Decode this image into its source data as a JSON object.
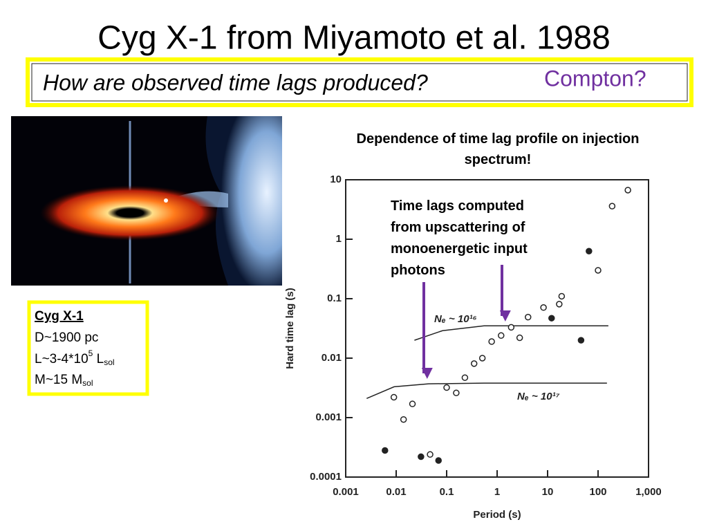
{
  "title": "Cyg X-1 from Miyamoto et al. 1988",
  "subtitle": {
    "question": "How are observed time lags produced?",
    "answer": "Compton?"
  },
  "info": {
    "heading": "Cyg X-1",
    "lines": [
      [
        "D~1900 pc"
      ],
      [
        "L~3-4*10",
        "5",
        " L",
        "sol"
      ],
      [
        "M~15 M",
        "sol"
      ]
    ]
  },
  "chart_data": {
    "type": "scatter",
    "title": "Dependence of time lag profile on injection spectrum!",
    "annotation": "Time lags computed from upscattering of monoenergetic input photons",
    "x_label": "Period (s)",
    "y_label": "Hard time lag (s)",
    "xscale": "log",
    "yscale": "log",
    "xlim": [
      0.001,
      1000
    ],
    "ylim": [
      0.0001,
      10
    ],
    "xticks": [
      0.001,
      0.01,
      0.1,
      1,
      10,
      100,
      {
        "value": 1000,
        "label": "1,000"
      }
    ],
    "yticks": [
      0.0001,
      0.001,
      0.01,
      0.1,
      1,
      10
    ],
    "color": "#222222",
    "series": [
      {
        "marker": "open",
        "x": [
          0.009,
          0.014,
          0.021,
          0.047,
          0.1,
          0.155,
          0.23,
          0.35,
          0.51,
          0.78,
          1.2,
          1.9,
          2.8,
          4.1,
          8.3,
          17,
          19,
          100,
          190,
          390
        ],
        "values": [
          0.0022,
          0.00093,
          0.0017,
          0.00024,
          0.0032,
          0.0026,
          0.0047,
          0.0081,
          0.01,
          0.019,
          0.024,
          0.033,
          0.022,
          0.049,
          0.071,
          0.081,
          0.11,
          0.3,
          3.6,
          6.7
        ]
      },
      {
        "marker": "filled",
        "x": [
          0.006,
          0.031,
          0.069,
          12,
          46,
          66
        ],
        "values": [
          0.00028,
          0.00022,
          0.00019,
          0.047,
          0.02,
          0.63
        ]
      }
    ],
    "curves": [
      {
        "name": "Nₑ ~ 10¹⁶",
        "x": [
          0.023,
          0.083,
          0.55,
          160
        ],
        "values": [
          0.02,
          0.029,
          0.035,
          0.035
        ]
      },
      {
        "name": "Nₑ ~ 10¹⁷",
        "x": [
          0.0026,
          0.0091,
          0.044,
          0.55,
          150
        ],
        "values": [
          0.0021,
          0.0033,
          0.0037,
          0.0038,
          0.0038
        ]
      }
    ]
  }
}
